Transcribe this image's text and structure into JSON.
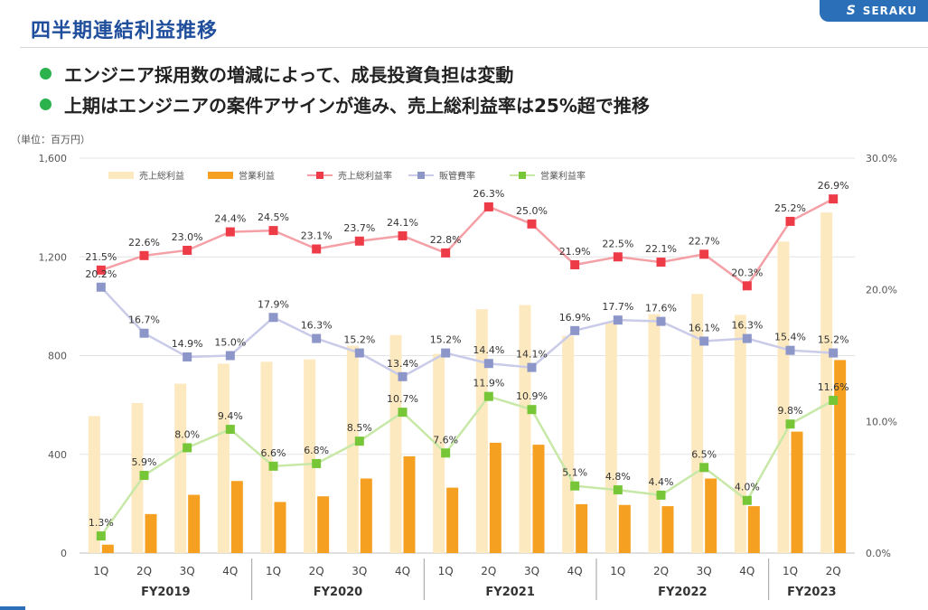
{
  "header": {
    "title": "四半期連結利益推移",
    "logo_text": "SERAKU",
    "logo_icon": "seraku-s-mark-icon",
    "brand_color": "#2a6fb8"
  },
  "bullets": [
    "エンジニア採用数の増減によって、成長投資負担は変動",
    "上期はエンジニアの案件アサインが進み、売上総利益率は25%超で推移"
  ],
  "unit_label": "（単位：百万円）",
  "chart_data": {
    "type": "bar",
    "categories": [
      "1Q",
      "2Q",
      "3Q",
      "4Q",
      "1Q",
      "2Q",
      "3Q",
      "4Q",
      "1Q",
      "2Q",
      "3Q",
      "4Q",
      "1Q",
      "2Q",
      "3Q",
      "4Q",
      "1Q",
      "2Q"
    ],
    "groups": [
      {
        "label": "FY2019",
        "count": 4
      },
      {
        "label": "FY2020",
        "count": 4
      },
      {
        "label": "FY2021",
        "count": 4
      },
      {
        "label": "FY2022",
        "count": 4
      },
      {
        "label": "FY2023",
        "count": 2
      }
    ],
    "y_left": {
      "min": 0,
      "max": 1600,
      "ticks": [
        0,
        400,
        800,
        1200,
        1600
      ],
      "tick_labels": [
        "0",
        "400",
        "800",
        "1,200",
        "1,600"
      ]
    },
    "y_right": {
      "min": 0,
      "max": 30,
      "ticks": [
        0,
        10,
        20,
        30
      ],
      "tick_labels": [
        "0.0%",
        "10.0%",
        "20.0%",
        "30.0%"
      ]
    },
    "grid": true,
    "legend_position": "top",
    "bar_series": [
      {
        "name": "売上総利益",
        "color": "#fde9c0",
        "values": [
          555,
          608,
          686,
          767,
          775,
          785,
          840,
          883,
          807,
          988,
          1005,
          880,
          935,
          968,
          1050,
          965,
          1262,
          1380
        ]
      },
      {
        "name": "営業利益",
        "color": "#f5a021",
        "values": [
          34,
          158,
          236,
          292,
          207,
          230,
          302,
          392,
          265,
          447,
          439,
          198,
          195,
          190,
          302,
          190,
          492,
          782
        ]
      }
    ],
    "line_series": [
      {
        "name": "売上総利益率",
        "color": "#f4a0a6",
        "marker_color": "#ee3b48",
        "values": [
          21.5,
          22.6,
          23.0,
          24.4,
          24.5,
          23.1,
          23.7,
          24.1,
          22.8,
          26.3,
          25.0,
          21.9,
          22.5,
          22.1,
          22.7,
          20.3,
          25.2,
          26.9
        ],
        "labels": [
          "21.5%",
          "22.6%",
          "23.0%",
          "24.4%",
          "24.5%",
          "23.1%",
          "23.7%",
          "24.1%",
          "22.8%",
          "26.3%",
          "25.0%",
          "21.9%",
          "22.5%",
          "22.1%",
          "22.7%",
          "20.3%",
          "25.2%",
          "26.9%"
        ]
      },
      {
        "name": "販管費率",
        "color": "#c9cbe8",
        "marker_color": "#8d96c9",
        "values": [
          20.2,
          16.7,
          14.9,
          15.0,
          17.9,
          16.3,
          15.2,
          13.4,
          15.2,
          14.4,
          14.1,
          16.9,
          17.7,
          17.6,
          16.1,
          16.3,
          15.4,
          15.2
        ],
        "labels": [
          "20.2%",
          "16.7%",
          "14.9%",
          "15.0%",
          "17.9%",
          "16.3%",
          "15.2%",
          "13.4%",
          "15.2%",
          "14.4%",
          "14.1%",
          "16.9%",
          "17.7%",
          "17.6%",
          "16.1%",
          "16.3%",
          "15.4%",
          "15.2%"
        ]
      },
      {
        "name": "営業利益率",
        "color": "#c7e8a6",
        "marker_color": "#76c637",
        "values": [
          1.3,
          5.9,
          8.0,
          9.4,
          6.6,
          6.8,
          8.5,
          10.7,
          7.6,
          11.9,
          10.9,
          5.1,
          4.8,
          4.4,
          6.5,
          4.0,
          9.8,
          11.6
        ],
        "labels": [
          "1.3%",
          "5.9%",
          "8.0%",
          "9.4%",
          "6.6%",
          "6.8%",
          "8.5%",
          "10.7%",
          "7.6%",
          "11.9%",
          "10.9%",
          "5.1%",
          "4.8%",
          "4.4%",
          "6.5%",
          "4.0%",
          "9.8%",
          "11.6%"
        ]
      }
    ]
  }
}
